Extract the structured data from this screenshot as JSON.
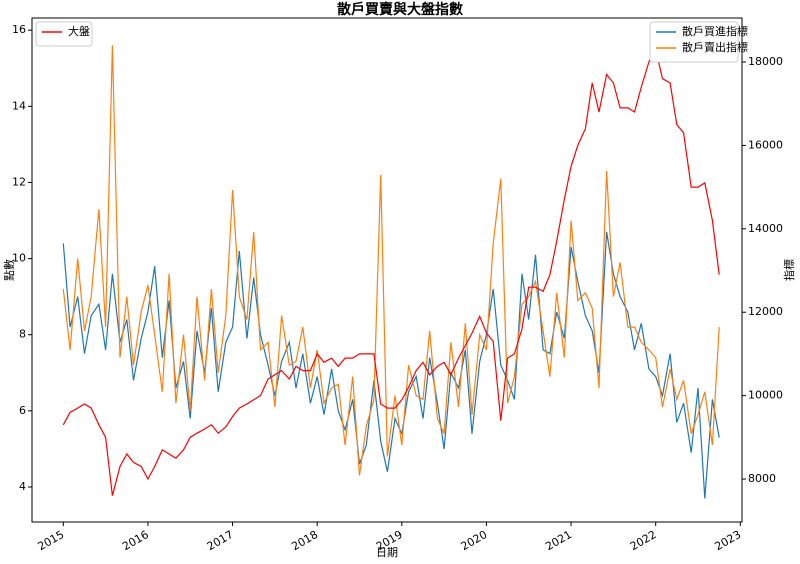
{
  "chart_data": {
    "type": "line",
    "title": "散戶買賣與大盤指數",
    "x_label": "日期",
    "y_label": "點數",
    "y2_label": "指標",
    "x": [
      2015.0,
      2015.08,
      2015.17,
      2015.25,
      2015.33,
      2015.42,
      2015.5,
      2015.58,
      2015.67,
      2015.75,
      2015.83,
      2015.92,
      2016.0,
      2016.08,
      2016.17,
      2016.25,
      2016.33,
      2016.42,
      2016.5,
      2016.58,
      2016.67,
      2016.75,
      2016.83,
      2016.92,
      2017.0,
      2017.08,
      2017.17,
      2017.25,
      2017.33,
      2017.42,
      2017.5,
      2017.58,
      2017.67,
      2017.75,
      2017.83,
      2017.92,
      2018.0,
      2018.08,
      2018.17,
      2018.25,
      2018.33,
      2018.42,
      2018.5,
      2018.58,
      2018.67,
      2018.75,
      2018.83,
      2018.92,
      2019.0,
      2019.08,
      2019.17,
      2019.25,
      2019.33,
      2019.42,
      2019.5,
      2019.58,
      2019.67,
      2019.75,
      2019.83,
      2019.92,
      2020.0,
      2020.08,
      2020.17,
      2020.25,
      2020.33,
      2020.42,
      2020.5,
      2020.58,
      2020.67,
      2020.75,
      2020.83,
      2020.92,
      2021.0,
      2021.08,
      2021.17,
      2021.25,
      2021.33,
      2021.42,
      2021.5,
      2021.58,
      2021.67,
      2021.75,
      2021.83,
      2021.92,
      2022.0,
      2022.08,
      2022.17,
      2022.25,
      2022.33,
      2022.42,
      2022.5,
      2022.58,
      2022.67,
      2022.75
    ],
    "series": [
      {
        "name": "散戶買進指標",
        "color": "#1f77b4",
        "values": [
          10.4,
          8.2,
          9.0,
          7.5,
          8.5,
          8.8,
          7.6,
          9.6,
          7.8,
          8.4,
          6.8,
          7.9,
          8.6,
          9.8,
          7.4,
          8.9,
          6.6,
          7.3,
          5.8,
          8.1,
          7.0,
          8.7,
          6.5,
          7.8,
          8.2,
          10.2,
          7.9,
          9.5,
          8.0,
          7.2,
          6.4,
          7.3,
          7.8,
          6.6,
          7.5,
          6.2,
          6.9,
          5.9,
          7.1,
          6.0,
          5.5,
          6.3,
          4.6,
          5.1,
          6.8,
          5.2,
          4.4,
          5.8,
          5.4,
          6.5,
          6.9,
          5.8,
          7.4,
          6.2,
          5.0,
          7.0,
          6.6,
          7.6,
          5.4,
          7.3,
          8.0,
          9.2,
          7.2,
          6.8,
          6.3,
          9.6,
          8.4,
          10.1,
          7.6,
          7.5,
          8.6,
          7.9,
          10.3,
          9.4,
          8.5,
          8.1,
          7.0,
          10.7,
          9.6,
          9.0,
          8.6,
          7.6,
          8.3,
          7.1,
          6.9,
          6.4,
          7.5,
          5.7,
          6.2,
          4.9,
          6.6,
          3.7,
          6.3,
          5.3
        ]
      },
      {
        "name": "散戶賣出指標",
        "color": "#ff7f0e",
        "values": [
          9.2,
          7.6,
          10.0,
          8.1,
          9.0,
          11.3,
          8.2,
          15.6,
          7.4,
          9.0,
          7.2,
          8.6,
          9.3,
          8.0,
          6.5,
          9.6,
          6.2,
          8.0,
          6.0,
          9.0,
          6.8,
          9.2,
          7.0,
          8.5,
          11.8,
          9.0,
          8.4,
          10.7,
          7.6,
          7.8,
          6.1,
          8.5,
          7.2,
          7.3,
          8.2,
          6.6,
          7.6,
          6.2,
          6.6,
          6.7,
          5.1,
          6.9,
          4.3,
          5.6,
          6.3,
          12.2,
          4.8,
          6.4,
          5.1,
          7.2,
          6.4,
          6.3,
          8.1,
          5.8,
          5.4,
          7.8,
          6.1,
          8.3,
          5.9,
          8.0,
          7.6,
          10.4,
          12.1,
          6.2,
          6.9,
          8.8,
          9.0,
          9.4,
          8.1,
          6.9,
          9.1,
          7.4,
          11.0,
          8.9,
          9.1,
          8.7,
          6.6,
          12.3,
          9.0,
          9.9,
          8.2,
          8.2,
          7.8,
          7.6,
          7.4,
          6.1,
          7.1,
          6.3,
          6.8,
          5.4,
          5.9,
          6.5,
          5.1,
          8.2
        ]
      },
      {
        "name": "大盤",
        "color": "#ff0000",
        "axis": "y2",
        "values": [
          9300,
          9600,
          9700,
          9800,
          9700,
          9300,
          9000,
          7600,
          8300,
          8600,
          8400,
          8300,
          8000,
          8300,
          8700,
          8600,
          8500,
          8700,
          9000,
          9100,
          9200,
          9300,
          9100,
          9250,
          9500,
          9700,
          9800,
          9900,
          10000,
          10400,
          10500,
          10600,
          10400,
          10700,
          10600,
          10600,
          11000,
          10800,
          10900,
          10700,
          10900,
          10900,
          11000,
          11000,
          11000,
          9800,
          9700,
          9700,
          9900,
          10200,
          10600,
          10800,
          10500,
          10700,
          10800,
          10500,
          10900,
          11200,
          11500,
          11900,
          11500,
          11300,
          9400,
          10900,
          11000,
          11600,
          12600,
          12600,
          12500,
          12900,
          13700,
          14700,
          15500,
          16000,
          16400,
          17500,
          16800,
          17700,
          17500,
          16900,
          16900,
          16800,
          17400,
          18000,
          18300,
          17600,
          17500,
          16500,
          16300,
          15000,
          15000,
          15100,
          14200,
          12900
        ]
      }
    ],
    "xlim": [
      2014.63,
      2023.02
    ],
    "xticks": [
      2015,
      2016,
      2017,
      2018,
      2019,
      2020,
      2021,
      2022,
      2023
    ],
    "ylim": [
      3.08,
      16.32
    ],
    "yticks": [
      4,
      6,
      8,
      10,
      12,
      14,
      16
    ],
    "y2lim": [
      6970,
      19055
    ],
    "y2ticks": [
      8000,
      10000,
      12000,
      14000,
      16000,
      18000
    ]
  }
}
